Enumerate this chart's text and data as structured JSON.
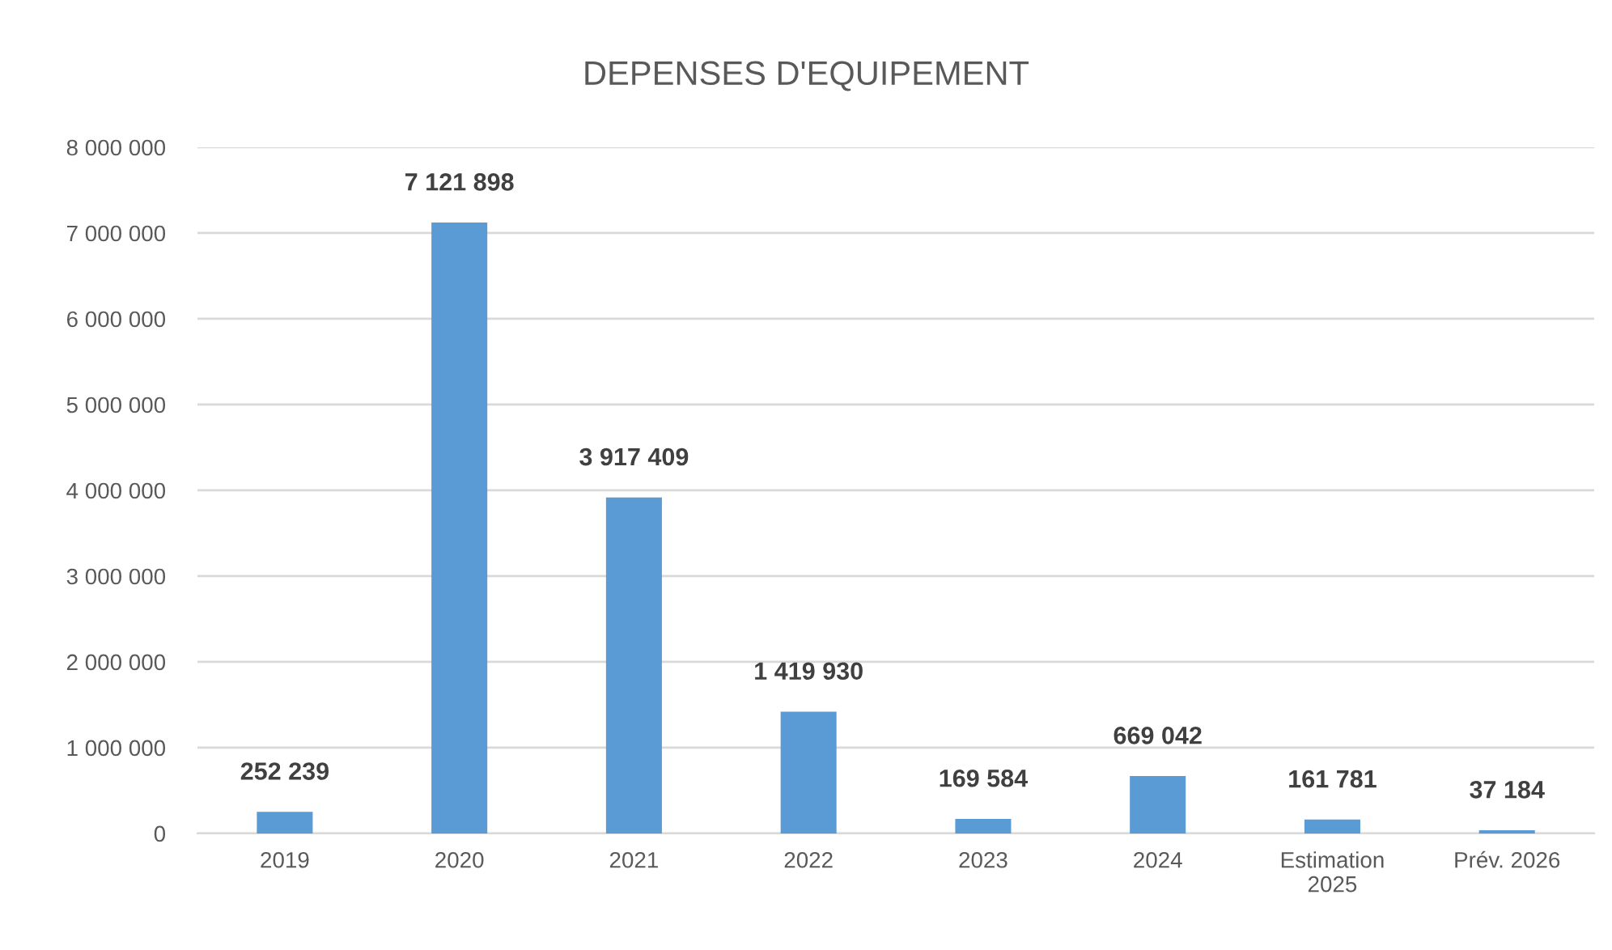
{
  "chart_data": {
    "type": "bar",
    "title": "DEPENSES D'EQUIPEMENT",
    "categories": [
      "2019",
      "2020",
      "2021",
      "2022",
      "2023",
      "2024",
      "Estimation\n2025",
      "Prév. 2026"
    ],
    "values": [
      252239,
      7121898,
      3917409,
      1419930,
      169584,
      669042,
      161781,
      37184
    ],
    "value_labels": [
      "252 239",
      "7 121 898",
      "3 917 409",
      "1 419 930",
      "169 584",
      "669 042",
      "161 781",
      "37 184"
    ],
    "color": "#5b9bd5",
    "ylim": [
      0,
      8000000
    ],
    "yticks": [
      {
        "value": 0,
        "label": "0"
      },
      {
        "value": 1000000,
        "label": "1 000 000"
      },
      {
        "value": 2000000,
        "label": "2 000 000"
      },
      {
        "value": 3000000,
        "label": "3 000 000"
      },
      {
        "value": 4000000,
        "label": "4 000 000"
      },
      {
        "value": 5000000,
        "label": "5 000 000"
      },
      {
        "value": 6000000,
        "label": "6 000 000"
      },
      {
        "value": 7000000,
        "label": "7 000 000"
      },
      {
        "value": 8000000,
        "label": "8 000 000"
      }
    ],
    "grid": "y",
    "legend": false
  }
}
